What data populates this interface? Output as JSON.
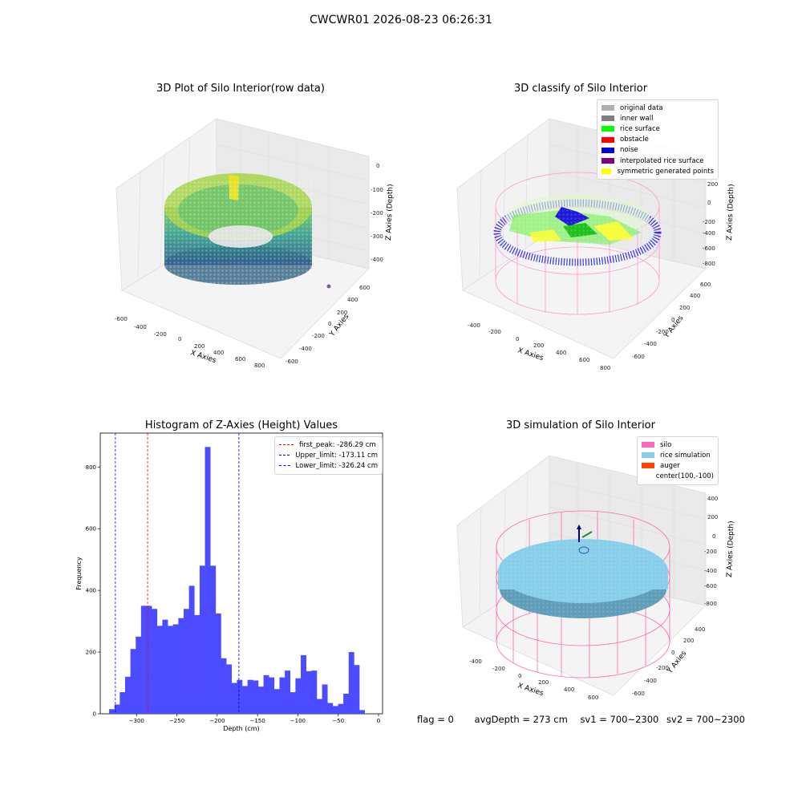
{
  "suptitle": "CWCWR01 2026-08-23 06:26:31",
  "panels": {
    "raw": {
      "title": "3D Plot of Silo Interior(row data)",
      "xlabel": "X Axies",
      "ylabel": "Y Axies",
      "zlabel": "Z Axies (Depth)",
      "xticks": [
        "-600",
        "-400",
        "-200",
        "0",
        "200",
        "400",
        "600",
        "800"
      ],
      "yticks": [
        "-600",
        "-400",
        "-200",
        "0",
        "200",
        "400",
        "600"
      ],
      "zticks": [
        "0",
        "-100",
        "-200",
        "-300",
        "-400"
      ]
    },
    "classify": {
      "title": "3D classify of Silo Interior",
      "xlabel": "X Axies",
      "ylabel": "Y Axies",
      "zlabel": "Z Axies (Depth)",
      "xticks": [
        "-400",
        "-200",
        "0",
        "200",
        "400",
        "600",
        "800"
      ],
      "yticks": [
        "-600",
        "-400",
        "-200",
        "0",
        "200",
        "400",
        "600"
      ],
      "zticks": [
        "200",
        "0",
        "-200",
        "-400",
        "-600",
        "-800"
      ],
      "legend": [
        {
          "label": "original data",
          "color": "#b0b0b0"
        },
        {
          "label": "inner wall",
          "color": "#808080"
        },
        {
          "label": "rice surface",
          "color": "#00ff00"
        },
        {
          "label": "obstacle",
          "color": "#ff0000"
        },
        {
          "label": "noise",
          "color": "#0000dd"
        },
        {
          "label": "interpolated rice surface",
          "color": "#800080"
        },
        {
          "label": "symmetric generated points",
          "color": "#ffff00"
        }
      ]
    },
    "simulation": {
      "title": "3D simulation of Silo Interior",
      "xlabel": "X Axies",
      "ylabel": "Y Axies",
      "zlabel": "Z Axies (Depth)",
      "xticks": [
        "-400",
        "-200",
        "0",
        "200",
        "400",
        "600"
      ],
      "yticks": [
        "-600",
        "-400",
        "-200",
        "0",
        "200",
        "400"
      ],
      "zticks": [
        "400",
        "200",
        "0",
        "-200",
        "-400",
        "-600",
        "-800"
      ],
      "legend": [
        {
          "label": "silo",
          "color": "#ff69b4"
        },
        {
          "label": "rice simulation",
          "color": "#87ceeb"
        },
        {
          "label": "auger",
          "color": "#ff4500"
        },
        {
          "label": "center(100,-100)",
          "color": ""
        }
      ]
    }
  },
  "chart_data": {
    "type": "bar",
    "title": "Histogram of Z-Axies (Height) Values",
    "xlabel": "Depth (cm)",
    "ylabel": "Frequency",
    "xlim": [
      -345,
      5
    ],
    "ylim": [
      0,
      910
    ],
    "bar_color": "#4b4bff",
    "bin_start": -334,
    "bin_width": 6.6,
    "counts": [
      15,
      30,
      70,
      120,
      210,
      250,
      350,
      350,
      340,
      285,
      305,
      285,
      290,
      310,
      340,
      415,
      320,
      480,
      865,
      480,
      325,
      180,
      160,
      100,
      110,
      90,
      110,
      108,
      88,
      125,
      118,
      80,
      118,
      140,
      70,
      115,
      190,
      138,
      140,
      48,
      95,
      35,
      25,
      32,
      65,
      200,
      158,
      12
    ],
    "xticks": [
      -300,
      -250,
      -200,
      -150,
      -100,
      -50,
      0
    ],
    "yticks": [
      0,
      200,
      400,
      600,
      800
    ],
    "vlines": [
      {
        "label": "first_peak: -286.29 cm",
        "x": -286.29,
        "color": "#ff0000"
      },
      {
        "label": "Upper_limit: -173.11 cm",
        "x": -173.11,
        "color": "#0000ff"
      },
      {
        "label": "Lower_limit: -326.24 cm",
        "x": -326.24,
        "color": "#0000ff"
      }
    ],
    "legend_position": "upper right"
  },
  "status": {
    "flag": "flag = 0",
    "avg": "avgDepth = 273 cm",
    "sv1": "sv1 = 700~2300",
    "sv2": "sv2 = 700~2300"
  }
}
